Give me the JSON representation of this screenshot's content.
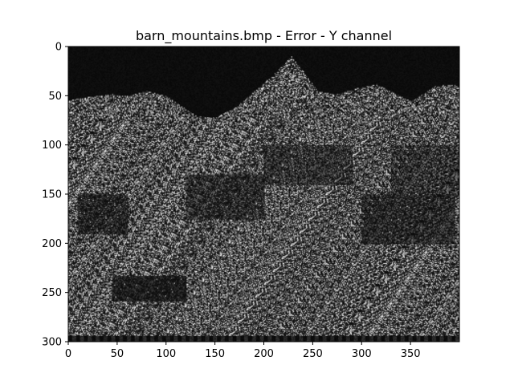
{
  "chart_data": {
    "type": "heatmap",
    "title": "barn_mountains.bmp - Error - Y channel",
    "xlabel": "",
    "ylabel": "",
    "colormap": "gray",
    "image_width": 400,
    "image_height": 300,
    "xlim": [
      0,
      400
    ],
    "ylim": [
      300,
      0
    ],
    "x_ticks": [
      0,
      50,
      100,
      150,
      200,
      250,
      300,
      350
    ],
    "y_ticks": [
      0,
      50,
      100,
      150,
      200,
      250,
      300
    ],
    "grid": false,
    "colors": {
      "background": "#ffffff",
      "axes": "#000000",
      "low": "#0a0a0a",
      "high": "#e6e6e6"
    },
    "mountain_profile": [
      [
        0,
        55
      ],
      [
        12,
        52
      ],
      [
        28,
        50
      ],
      [
        45,
        48
      ],
      [
        60,
        50
      ],
      [
        80,
        45
      ],
      [
        100,
        50
      ],
      [
        115,
        60
      ],
      [
        130,
        70
      ],
      [
        150,
        72
      ],
      [
        170,
        62
      ],
      [
        190,
        45
      ],
      [
        210,
        28
      ],
      [
        228,
        10
      ],
      [
        240,
        25
      ],
      [
        255,
        45
      ],
      [
        275,
        48
      ],
      [
        295,
        42
      ],
      [
        315,
        38
      ],
      [
        335,
        48
      ],
      [
        350,
        55
      ],
      [
        362,
        48
      ],
      [
        375,
        40
      ],
      [
        390,
        38
      ],
      [
        400,
        40
      ]
    ],
    "dark_regions": [
      {
        "x": [
          10,
          60
        ],
        "y": [
          150,
          190
        ],
        "level": 0.35
      },
      {
        "x": [
          45,
          120
        ],
        "y": [
          233,
          258
        ],
        "level": 0.25
      },
      {
        "x": [
          120,
          200
        ],
        "y": [
          130,
          175
        ],
        "level": 0.45
      },
      {
        "x": [
          200,
          290
        ],
        "y": [
          100,
          140
        ],
        "level": 0.5
      },
      {
        "x": [
          300,
          395
        ],
        "y": [
          150,
          200
        ],
        "level": 0.4
      },
      {
        "x": [
          330,
          400
        ],
        "y": [
          100,
          150
        ],
        "level": 0.55
      }
    ],
    "bottom_strip": {
      "y": [
        294,
        302
      ]
    }
  }
}
